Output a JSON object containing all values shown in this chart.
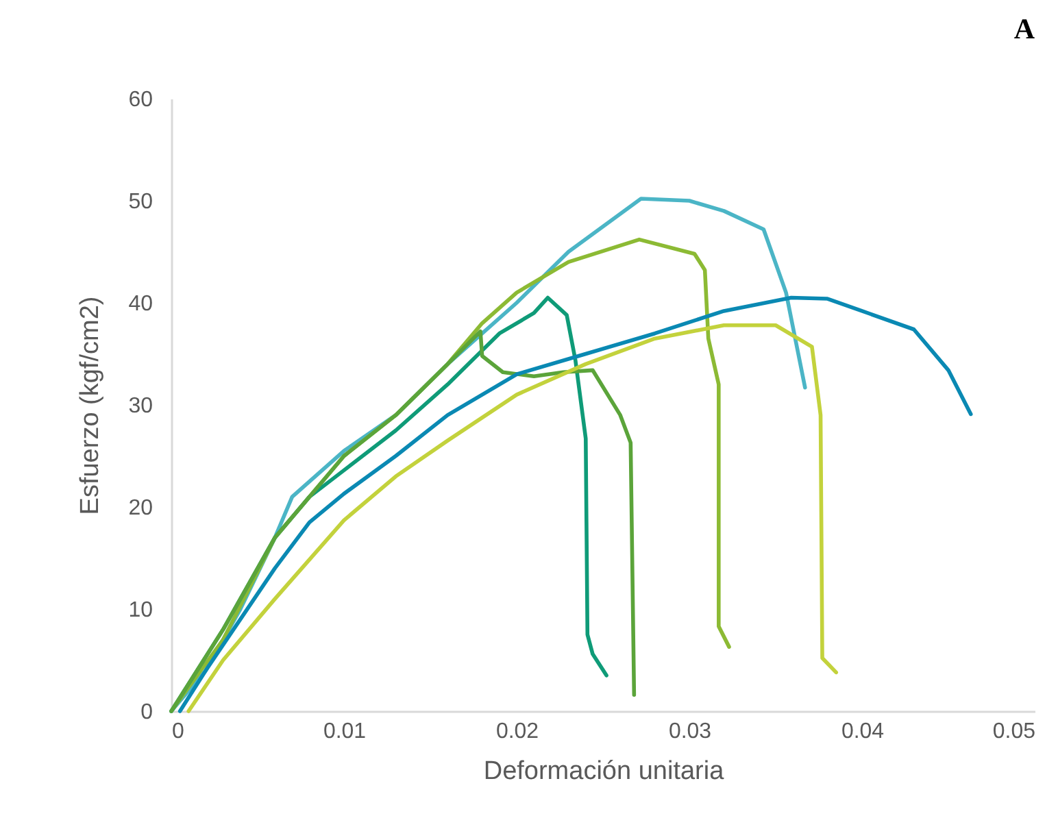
{
  "chart_data": {
    "type": "line",
    "title": "A",
    "xlabel": "Deformación unitaria",
    "ylabel": "Esfuerzo (kgf/cm2)",
    "xlim": [
      0,
      0.05
    ],
    "xticks": [
      0,
      0.01,
      0.02,
      0.03,
      0.04,
      0.05
    ],
    "ylim": [
      0,
      60
    ],
    "yticks": [
      0,
      10,
      20,
      30,
      40,
      50,
      60
    ],
    "grid": false,
    "line_style": "solid",
    "series": [
      {
        "color": "#4bb5c6",
        "x": [
          0,
          0.002,
          0.004,
          0.006,
          0.007,
          0.01,
          0.013,
          0.016,
          0.02,
          0.023,
          0.0272,
          0.03,
          0.032,
          0.0343,
          0.0356,
          0.0367
        ],
        "values": [
          0,
          4,
          10,
          17,
          21,
          25.5,
          29,
          34,
          40,
          45,
          50.2,
          50,
          49,
          47.2,
          41,
          31.7
        ]
      },
      {
        "color": "#8cba34",
        "x": [
          0,
          0.003,
          0.006,
          0.01,
          0.013,
          0.016,
          0.018,
          0.02,
          0.023,
          0.0271,
          0.0303,
          0.0309,
          0.0311,
          0.0317,
          0.0317,
          0.0323
        ],
        "values": [
          0,
          7,
          17,
          25,
          29,
          34,
          38,
          41,
          44,
          46.2,
          44.8,
          43.2,
          36.5,
          32,
          8.3,
          6.3
        ]
      },
      {
        "color": "#0f9b78",
        "x": [
          0,
          0.003,
          0.006,
          0.008,
          0.01,
          0.013,
          0.016,
          0.019,
          0.021,
          0.0218,
          0.0229,
          0.0234,
          0.024,
          0.0241,
          0.0244,
          0.0252
        ],
        "values": [
          0,
          8,
          17,
          21,
          23.6,
          27.5,
          32,
          37,
          39,
          40.5,
          38.8,
          34.4,
          26.7,
          7.5,
          5.6,
          3.5
        ]
      },
      {
        "color": "#5ba43a",
        "x": [
          0,
          0.003,
          0.006,
          0.01,
          0.013,
          0.016,
          0.0179,
          0.018,
          0.0192,
          0.021,
          0.0227,
          0.0244,
          0.026,
          0.0266,
          0.0268
        ],
        "values": [
          0,
          8,
          17,
          25,
          29,
          34,
          37.2,
          34.8,
          33.2,
          32.8,
          33.2,
          33.4,
          29,
          26.3,
          1.6
        ]
      },
      {
        "color": "#0a89b3",
        "x": [
          0.0005,
          0.002,
          0.004,
          0.006,
          0.008,
          0.01,
          0.013,
          0.016,
          0.02,
          0.024,
          0.028,
          0.032,
          0.0359,
          0.038,
          0.04,
          0.043,
          0.045,
          0.0463
        ],
        "values": [
          0,
          4,
          9,
          14,
          18.5,
          21.3,
          25,
          29,
          33,
          35,
          37,
          39.2,
          40.5,
          40.4,
          39.2,
          37.4,
          33.4,
          29.1
        ]
      },
      {
        "color": "#c3d23c",
        "x": [
          0.001,
          0.003,
          0.006,
          0.01,
          0.013,
          0.016,
          0.02,
          0.024,
          0.028,
          0.032,
          0.035,
          0.0371,
          0.0376,
          0.0377,
          0.0385
        ],
        "values": [
          0,
          5,
          11,
          18.7,
          23,
          26.5,
          31,
          34,
          36.5,
          37.8,
          37.8,
          35.7,
          29,
          5.2,
          3.8
        ]
      }
    ]
  }
}
